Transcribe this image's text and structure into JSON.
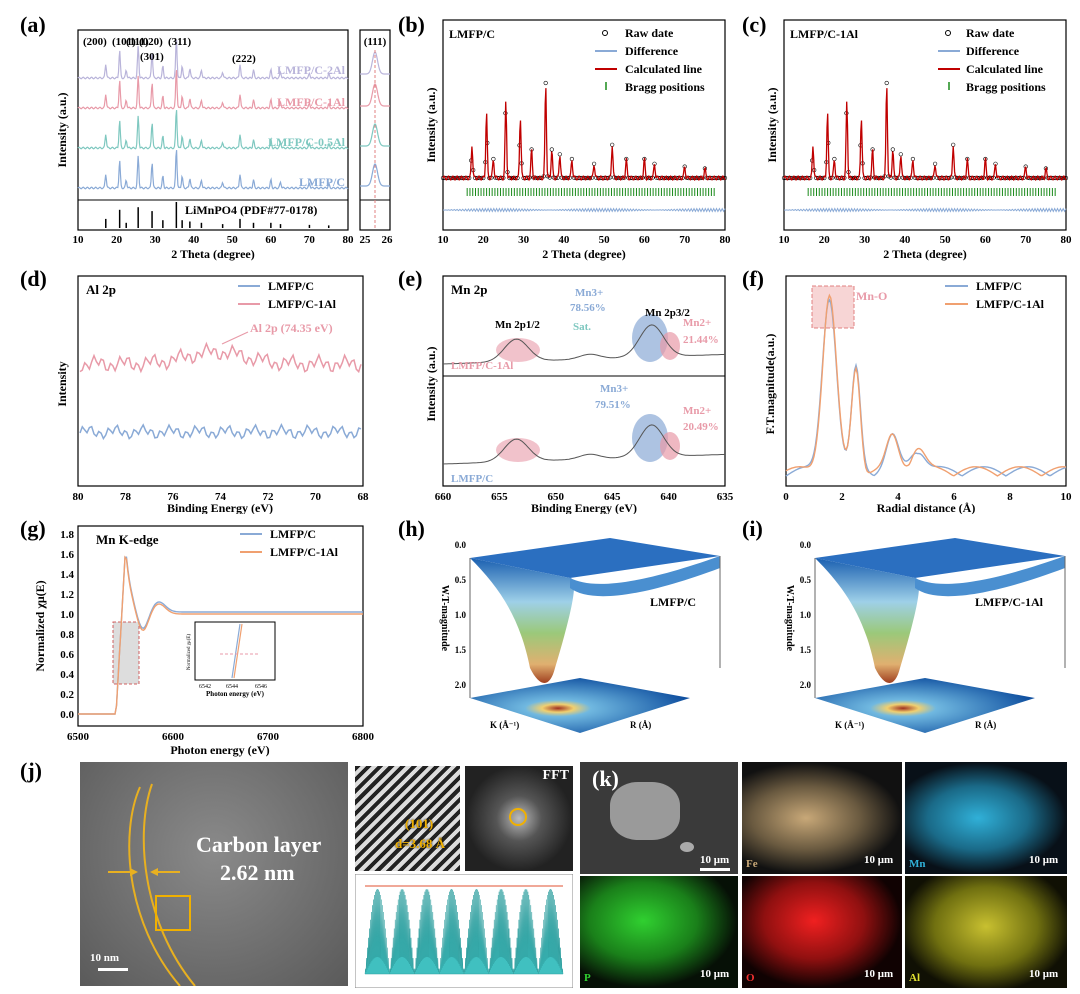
{
  "panels": {
    "a": "(a)",
    "b": "(b)",
    "c": "(c)",
    "d": "(d)",
    "e": "(e)",
    "f": "(f)",
    "g": "(g)",
    "h": "(h)",
    "i": "(i)",
    "j": "(j)",
    "k": "(k)"
  },
  "colors": {
    "lmfp_c": "#8aaad6",
    "lmfp_c1": "#e89aa8",
    "lmfp_c05": "#7fc8c0",
    "lmfp_c2": "#b9b4da",
    "red": "#c00000",
    "green": "#1a8a1a",
    "orange": "#f0a070",
    "gold": "#f0b000"
  },
  "a": {
    "hkl": [
      "(200)",
      "(101)",
      "(111)",
      "(020)",
      "(301)",
      "(311)",
      "(222)"
    ],
    "samples": [
      "LMFP/C-2Al",
      "LMFP/C-1Al",
      "LMFP/C-0.5Al",
      "LMFP/C"
    ],
    "ref": "LiMnPO4 (PDF#77-0178)",
    "ylabel": "Intensity (a.u.)",
    "xlabel": "2 Theta (degree)",
    "xticks": [
      "10",
      "20",
      "30",
      "40",
      "50",
      "60",
      "70",
      "80"
    ],
    "inset_label": "(111)",
    "inset_xticks": [
      "25",
      "26"
    ]
  },
  "b": {
    "title": "LMFP/C",
    "legend": [
      "Raw date",
      "Difference",
      "Calculated line",
      "Bragg positions"
    ],
    "ylabel": "Intensity (a.u.)",
    "xlabel": "2 Theta (degree)",
    "xticks": [
      "10",
      "20",
      "30",
      "40",
      "50",
      "60",
      "70",
      "80"
    ]
  },
  "c": {
    "title": "LMFP/C-1Al",
    "legend": [
      "Raw date",
      "Difference",
      "Calculated line",
      "Bragg positions"
    ],
    "ylabel": "Intensity (a.u.)",
    "xlabel": "2 Theta (degree)",
    "xticks": [
      "10",
      "20",
      "30",
      "40",
      "50",
      "60",
      "70",
      "80"
    ]
  },
  "d": {
    "title": "Al 2p",
    "legend": [
      "LMFP/C",
      "LMFP/C-1Al"
    ],
    "annotation": "Al 2p (74.35 eV)",
    "ylabel": "Intensity",
    "xlabel": "Binding Energy (eV)",
    "xticks": [
      "80",
      "78",
      "76",
      "74",
      "72",
      "70",
      "68"
    ]
  },
  "e": {
    "title": "Mn 2p",
    "peak1": "Mn 2p1/2",
    "peak2": "Mn 2p3/2",
    "sat": "Sat.",
    "top": {
      "sample": "LMFP/C-1Al",
      "mn3": "Mn3+",
      "mn3_pct": "78.56%",
      "mn2": "Mn2+",
      "mn2_pct": "21.44%"
    },
    "bottom": {
      "sample": "LMFP/C",
      "mn3": "Mn3+",
      "mn3_pct": "79.51%",
      "mn2": "Mn2+",
      "mn2_pct": "20.49%"
    },
    "ylabel": "Intensity (a.u.)",
    "xlabel": "Binding Energy (eV)",
    "xticks": [
      "660",
      "655",
      "650",
      "645",
      "640",
      "635"
    ]
  },
  "f": {
    "legend": [
      "LMFP/C",
      "LMFP/C-1Al"
    ],
    "annotation": "Mn-O",
    "ylabel": "F.T.magnitude(a.u.)",
    "xlabel": "Radial distance (Å)",
    "xticks": [
      "0",
      "2",
      "4",
      "6",
      "8",
      "10"
    ]
  },
  "g": {
    "title": "Mn K-edge",
    "legend": [
      "LMFP/C",
      "LMFP/C-1Al"
    ],
    "ylabel": "Normalized χμ(E)",
    "xlabel": "Photon energy (eV)",
    "xticks": [
      "6500",
      "6600",
      "6700",
      "6800"
    ],
    "yticks": [
      "0.0",
      "0.2",
      "0.4",
      "0.6",
      "0.8",
      "1.0",
      "1.2",
      "1.4",
      "1.6",
      "1.8"
    ],
    "inset_ylabel": "Normalized χμ(E)",
    "inset_xlabel": "Photon energy (eV)",
    "inset_xticks": [
      "6542",
      "6544",
      "6546"
    ]
  },
  "h": {
    "label": "LMFP/C",
    "zlabel": "W.T-magnitude",
    "zticks": [
      "0.0",
      "0.5",
      "1.0",
      "1.5",
      "2.0"
    ],
    "xlabel": "K (Å⁻¹)",
    "ylabel": "R (Å)"
  },
  "i": {
    "label": "LMFP/C-1Al",
    "zlabel": "W.T-magnitude",
    "zticks": [
      "0.0",
      "0.5",
      "1.0",
      "1.5",
      "2.0"
    ],
    "xlabel": "K (Å⁻¹)",
    "ylabel": "R (Å)"
  },
  "j": {
    "layer_label": "Carbon layer",
    "layer_thickness": "2.62 nm",
    "scale": "10 nm",
    "plane": "(101)",
    "d_spacing": "d=3.68 Å",
    "fft": "FFT"
  },
  "k": {
    "scales": [
      "10 μm",
      "10 μm",
      "10 μm",
      "10 μm",
      "10 μm",
      "10 μm"
    ],
    "elements": [
      "Fe",
      "Mn",
      "P",
      "O",
      "Al"
    ]
  }
}
